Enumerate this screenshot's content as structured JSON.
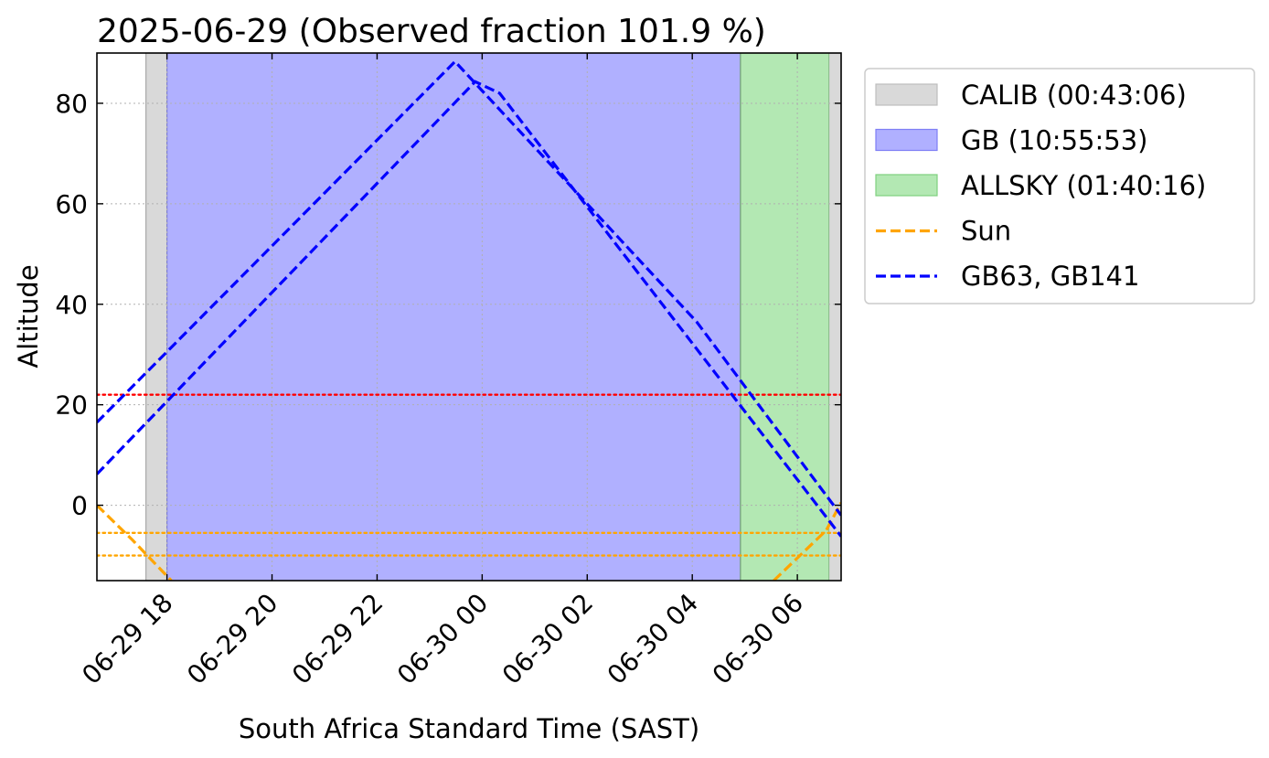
{
  "chart_data": {
    "type": "line",
    "title": "2025-06-29 (Observed fraction 101.9 %)",
    "xlabel": "South Africa Standard Time (SAST)",
    "ylabel": "Altitude",
    "time_zone": "SAST",
    "xlim": [
      "2025-06-29 16:40",
      "2025-06-30 06:50"
    ],
    "ylim": [
      -15,
      90
    ],
    "grid": true,
    "legend_position": "outside-right-top",
    "x_ticks": [
      {
        "t": "2025-06-29 18:00",
        "label": "06-29 18"
      },
      {
        "t": "2025-06-29 20:00",
        "label": "06-29 20"
      },
      {
        "t": "2025-06-29 22:00",
        "label": "06-29 22"
      },
      {
        "t": "2025-06-30 00:00",
        "label": "06-30 00"
      },
      {
        "t": "2025-06-30 02:00",
        "label": "06-30 02"
      },
      {
        "t": "2025-06-30 04:00",
        "label": "06-30 04"
      },
      {
        "t": "2025-06-30 06:00",
        "label": "06-30 06"
      }
    ],
    "y_ticks": [
      {
        "value": 0,
        "label": "0"
      },
      {
        "value": 20,
        "label": "20"
      },
      {
        "value": 40,
        "label": "40"
      },
      {
        "value": 60,
        "label": "60"
      },
      {
        "value": 80,
        "label": "80"
      }
    ],
    "spans": [
      {
        "name": "CALIB",
        "start": "2025-06-29 17:36",
        "end": "2025-06-29 18:00",
        "color": "#d9d9d9"
      },
      {
        "name": "GB",
        "start": "2025-06-29 18:00",
        "end": "2025-06-30 04:55",
        "color": "#b0b0ff"
      },
      {
        "name": "ALLSKY",
        "start": "2025-06-30 04:55",
        "end": "2025-06-30 06:36",
        "color": "#b3e8b3"
      },
      {
        "name": "CALIB",
        "start": "2025-06-30 06:36",
        "end": "2025-06-30 06:55",
        "color": "#d9d9d9"
      }
    ],
    "hlines": [
      {
        "y": 22,
        "color": "#ff0000",
        "style": "dotted"
      },
      {
        "y": -5.5,
        "color": "#ffa500",
        "style": "dotted"
      },
      {
        "y": -10,
        "color": "#ffa500",
        "style": "dotted"
      }
    ],
    "series": [
      {
        "name": "Sun",
        "color": "#ffa500",
        "style": "dashed",
        "segments": [
          [
            [
              "2025-06-29 16:40",
              0
            ],
            [
              "2025-06-29 17:21",
              -7
            ],
            [
              "2025-06-29 18:05",
              -15
            ]
          ],
          [
            [
              "2025-06-30 05:33",
              -15
            ],
            [
              "2025-06-30 06:33",
              -5
            ],
            [
              "2025-06-30 06:50",
              0.5
            ]
          ]
        ]
      },
      {
        "name": "GB63",
        "color": "#0000ff",
        "style": "dashed",
        "segments": [
          [
            [
              "2025-06-29 16:40",
              16.5
            ],
            [
              "2025-06-29 23:29",
              88.3
            ],
            [
              "2025-06-30 04:05",
              36.5
            ],
            [
              "2025-06-30 06:50",
              -2
            ]
          ]
        ]
      },
      {
        "name": "GB141",
        "color": "#0000ff",
        "style": "dashed",
        "segments": [
          [
            [
              "2025-06-29 16:40",
              6.2
            ],
            [
              "2025-06-29 23:52",
              84.3
            ],
            [
              "2025-06-30 00:20",
              82.0
            ],
            [
              "2025-06-30 06:50",
              -6.2
            ]
          ]
        ]
      }
    ],
    "legend": [
      {
        "label": "CALIB (00:43:06)",
        "kind": "patch",
        "color": "#d9d9d9",
        "edge": "#bdbdbd"
      },
      {
        "label": "GB (10:55:53)",
        "kind": "patch",
        "color": "#b0b0ff",
        "edge": "#7f7ff5"
      },
      {
        "label": "ALLSKY (01:40:16)",
        "kind": "patch",
        "color": "#b3e8b3",
        "edge": "#7fd07f"
      },
      {
        "label": "Sun",
        "kind": "line",
        "color": "#ffa500"
      },
      {
        "label": "GB63, GB141",
        "kind": "line",
        "color": "#0000ff"
      }
    ]
  }
}
